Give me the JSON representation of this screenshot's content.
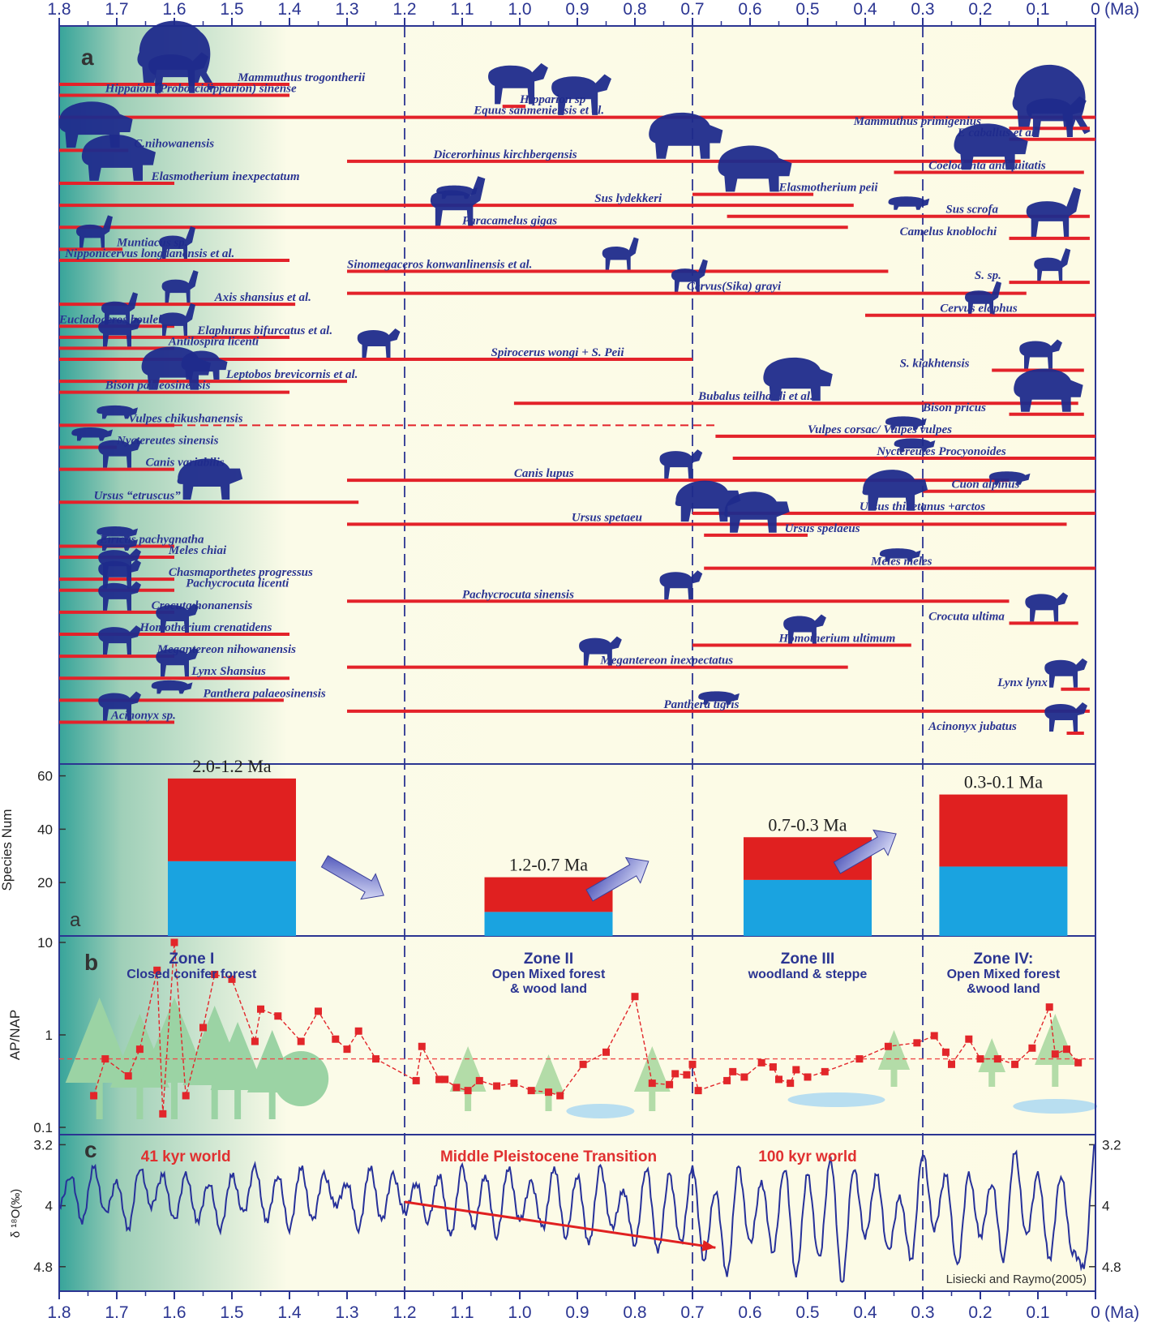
{
  "axis": {
    "ticks": [
      1.8,
      1.7,
      1.6,
      1.5,
      1.4,
      1.3,
      1.2,
      1.1,
      1.0,
      0.9,
      0.8,
      0.7,
      0.6,
      0.5,
      0.4,
      0.3,
      0.2,
      0.1,
      0
    ],
    "tick_labels": [
      "1.8",
      "1.7",
      "1.6",
      "1.5",
      "1.4",
      "1.3",
      "1.2",
      "1.1",
      "1.0",
      "0.9",
      "0.8",
      "0.7",
      "0.6",
      "0.5",
      "0.4",
      "0.3",
      "0.2",
      "0.1",
      "0"
    ],
    "unit": "(Ma)",
    "boundaries": [
      1.2,
      0.7,
      0.3
    ]
  },
  "panel_a": {
    "label": "a",
    "species": [
      {
        "name": "Mammuthus trogontherii",
        "start": 1.8,
        "end": 1.4,
        "labelAt": 1.49,
        "icon": "mammoth-icon"
      },
      {
        "name": "Hippaion (Proboscidipparion) sinense",
        "start": 1.8,
        "end": 1.4,
        "labelAt": 1.72,
        "icon": "horse-icon"
      },
      {
        "name": "Hipparion sp",
        "start": 1.03,
        "end": 0.99,
        "labelAt": 1.0,
        "icon": "horse-icon"
      },
      {
        "name": "Equus sanmeniensis et al.",
        "start": 1.8,
        "end": 0,
        "labelAt": 1.08,
        "icon": "horse-icon"
      },
      {
        "name": "Mammuthus primigenius",
        "start": 0.15,
        "end": 0.01,
        "labelAt": 0.42,
        "icon": "mammoth-icon"
      },
      {
        "name": "E caballus et al.",
        "start": 0.15,
        "end": 0,
        "labelAt": 0.24,
        "icon": "horse-icon"
      },
      {
        "name": "C.nihowanensis",
        "start": 1.8,
        "end": 1.68,
        "labelAt": 1.67,
        "icon": "rhino-icon"
      },
      {
        "name": "Dicerorhinus kirchbergensis",
        "start": 1.3,
        "end": 0.13,
        "labelAt": 1.15,
        "icon": "rhino-icon"
      },
      {
        "name": "Coelodonta antiquitatis",
        "start": 0.35,
        "end": 0.02,
        "labelAt": 0.29,
        "icon": "rhino-icon"
      },
      {
        "name": "Elasmotherium inexpectatum",
        "start": 1.8,
        "end": 1.6,
        "labelAt": 1.64,
        "icon": "rhino-icon"
      },
      {
        "name": "Elasmotherium peii",
        "start": 0.7,
        "end": 0.49,
        "labelAt": 0.55,
        "icon": "rhino-icon"
      },
      {
        "name": "Sus lydekkeri",
        "start": 1.8,
        "end": 0.42,
        "labelAt": 0.87,
        "icon": "boar-icon"
      },
      {
        "name": "Sus scrofa",
        "start": 0.64,
        "end": 0.01,
        "labelAt": 0.26,
        "icon": "boar-icon"
      },
      {
        "name": "Paracamelus gigas",
        "start": 1.8,
        "end": 0.43,
        "labelAt": 1.1,
        "icon": "camel-icon"
      },
      {
        "name": "Camelus knoblochi",
        "start": 0.15,
        "end": 0.01,
        "labelAt": 0.34,
        "icon": "camel-icon"
      },
      {
        "name": "Muntiacus sp.",
        "start": 1.8,
        "end": 1.69,
        "labelAt": 1.7,
        "icon": "deer-icon"
      },
      {
        "name": "Nipponicervus longdanensis et al.",
        "start": 1.8,
        "end": 1.4,
        "labelAt": 1.79,
        "icon": "deer-icon"
      },
      {
        "name": "Sinomegaceros konwanlinensis et al.",
        "start": 1.3,
        "end": 0.36,
        "labelAt": 1.3,
        "icon": "deer-icon"
      },
      {
        "name": "S. sp.",
        "start": 0.15,
        "end": 0.01,
        "labelAt": 0.21,
        "icon": "deer-icon"
      },
      {
        "name": "Cervus(Sika) grayi",
        "start": 1.3,
        "end": 0.12,
        "labelAt": 0.71,
        "icon": "deer-icon"
      },
      {
        "name": "Axis shansius et al.",
        "start": 1.8,
        "end": 1.39,
        "labelAt": 1.53,
        "icon": "deer-icon"
      },
      {
        "name": "Cervus elaphus",
        "start": 0.4,
        "end": 0,
        "labelAt": 0.27,
        "icon": "deer-icon"
      },
      {
        "name": "Eucladoceros boulei",
        "start": 1.8,
        "end": 1.6,
        "labelAt": 1.8,
        "icon": "deer-icon"
      },
      {
        "name": "Elaphurus bifurcatus et al.",
        "start": 1.8,
        "end": 1.4,
        "labelAt": 1.56,
        "icon": "deer-icon"
      },
      {
        "name": "Antilospira licenti",
        "start": 1.8,
        "end": 1.6,
        "labelAt": 1.61,
        "icon": "antelope-icon"
      },
      {
        "name": "Spirocerus wongi + S. Peii",
        "start": 1.8,
        "end": 0.7,
        "labelAt": 1.05,
        "icon": "antelope-icon"
      },
      {
        "name": "S. kiakhtensis",
        "start": 0.18,
        "end": 0.02,
        "labelAt": 0.34,
        "icon": "antelope-icon"
      },
      {
        "name": "Leptobos brevicornis et al.",
        "start": 1.8,
        "end": 1.3,
        "labelAt": 1.51,
        "icon": "bovid-icon"
      },
      {
        "name": "Bison palaeosinensis",
        "start": 1.8,
        "end": 1.4,
        "labelAt": 1.72,
        "icon": "bison-icon"
      },
      {
        "name": "Bubalus teilhardi et al.",
        "start": 1.01,
        "end": 0.03,
        "labelAt": 0.69,
        "icon": "buffalo-icon"
      },
      {
        "name": "Bison pricus",
        "start": 0.15,
        "end": 0.02,
        "labelAt": 0.3,
        "icon": "bison-icon"
      },
      {
        "name": "Vulpes chikushanensis",
        "start": 1.8,
        "end": 1.6,
        "labelAt": 1.68,
        "icon": "fox-icon"
      },
      {
        "name": "Vulpes corsac/ Vulpes vulpes",
        "start": 0.66,
        "end": 0,
        "labelAt": 0.5,
        "icon": "fox-icon"
      },
      {
        "name": "Nyctereutes sinensis",
        "start": 1.8,
        "end": 1.7,
        "labelAt": 1.7,
        "icon": "raccoon-dog-icon"
      },
      {
        "name": "Nyctereutes Procyonoides",
        "start": 0.63,
        "end": 0,
        "labelAt": 0.38,
        "icon": "raccoon-dog-icon"
      },
      {
        "name": "Canis variabilis",
        "start": 1.8,
        "end": 1.6,
        "labelAt": 1.65,
        "icon": "wolf-icon"
      },
      {
        "name": "Canis lupus",
        "start": 1.3,
        "end": 0.15,
        "labelAt": 1.01,
        "icon": "wolf-icon"
      },
      {
        "name": "Cuon alpinus",
        "start": 0.3,
        "end": 0,
        "labelAt": 0.25,
        "icon": "dhole-icon"
      },
      {
        "name": "Ursus “etruscus”",
        "start": 1.8,
        "end": 1.28,
        "labelAt": 1.74,
        "icon": "bear-icon"
      },
      {
        "name": "Ursus thibetanus +arctos",
        "start": 0.7,
        "end": 0,
        "labelAt": 0.41,
        "icon": "bear-icon"
      },
      {
        "name": "Ursus spetaeu",
        "start": 1.3,
        "end": 0.05,
        "labelAt": 0.91,
        "icon": "bear-icon"
      },
      {
        "name": "Ursus spelaeus",
        "start": 0.68,
        "end": 0.5,
        "labelAt": 0.54,
        "icon": "bear-icon"
      },
      {
        "name": "Eirictis pachygnatha",
        "start": 1.8,
        "end": 1.6,
        "labelAt": 1.73,
        "icon": "weasel-icon"
      },
      {
        "name": "Meles chiai",
        "start": 1.8,
        "end": 1.6,
        "labelAt": 1.61,
        "icon": "badger-icon"
      },
      {
        "name": "Meles meles",
        "start": 0.68,
        "end": 0,
        "labelAt": 0.39,
        "icon": "badger-icon"
      },
      {
        "name": "Chasmaporthetes progressus",
        "start": 1.8,
        "end": 1.6,
        "labelAt": 1.61,
        "icon": "hyena-icon"
      },
      {
        "name": "Pachycrocuta licenti",
        "start": 1.8,
        "end": 1.6,
        "labelAt": 1.58,
        "icon": "hyena-icon"
      },
      {
        "name": "Pachycrocuta sinensis",
        "start": 1.3,
        "end": 0.15,
        "labelAt": 1.1,
        "icon": "hyena-icon"
      },
      {
        "name": "Crocuta honanensis",
        "start": 1.8,
        "end": 1.6,
        "labelAt": 1.64,
        "icon": "hyena-icon"
      },
      {
        "name": "Crocuta ultima",
        "start": 0.15,
        "end": 0.03,
        "labelAt": 0.29,
        "icon": "hyena-icon"
      },
      {
        "name": "Homotherium crenatidens",
        "start": 1.8,
        "end": 1.4,
        "labelAt": 1.66,
        "icon": "sabertooth-icon"
      },
      {
        "name": "Homotherium ultimum",
        "start": 0.7,
        "end": 0.32,
        "labelAt": 0.55,
        "icon": "sabertooth-icon"
      },
      {
        "name": "Megantereon nihowanensis",
        "start": 1.8,
        "end": 1.6,
        "labelAt": 1.63,
        "icon": "sabertooth-icon"
      },
      {
        "name": "Megantereon inexpectatus",
        "start": 1.3,
        "end": 0.43,
        "labelAt": 0.86,
        "icon": "sabertooth-icon"
      },
      {
        "name": "Lynx Shansius",
        "start": 1.8,
        "end": 1.4,
        "labelAt": 1.57,
        "icon": "lynx-icon"
      },
      {
        "name": "Lynx lynx",
        "start": 0.06,
        "end": 0.01,
        "labelAt": 0.17,
        "icon": "lynx-icon"
      },
      {
        "name": "Panthera palaeosinensis",
        "start": 1.8,
        "end": 1.41,
        "labelAt": 1.55,
        "icon": "panther-icon"
      },
      {
        "name": "Panthera tigris",
        "start": 1.3,
        "end": 0.01,
        "labelAt": 0.75,
        "icon": "tiger-icon"
      },
      {
        "name": "Acinonyx sp.",
        "start": 1.8,
        "end": 1.6,
        "labelAt": 1.71,
        "icon": "cheetah-icon"
      },
      {
        "name": "Acinonyx jubatus",
        "start": 0.05,
        "end": 0.02,
        "labelAt": 0.29,
        "icon": "cheetah-icon"
      }
    ]
  },
  "chart_data": [
    {
      "type": "bar",
      "panel": "a",
      "ylabel": "Species Num",
      "ylim": [
        0,
        62
      ],
      "yticks": [
        20,
        40,
        60
      ],
      "categories": [
        "2.0-1.2 Ma",
        "1.2-0.7 Ma",
        "0.7-0.3 Ma",
        "0.3-0.1 Ma"
      ],
      "series": [
        {
          "values": [
            28,
            9,
            21,
            26
          ],
          "color": "#1aa3e0"
        },
        {
          "values": [
            31,
            13,
            16,
            27
          ],
          "color": "#e02020"
        }
      ],
      "arrows": [
        "down",
        "up",
        "up"
      ]
    },
    {
      "type": "scatter",
      "panel": "b",
      "ylabel": "AP/NAP",
      "yscale": "log",
      "ylim": [
        0.1,
        10
      ],
      "yticks": [
        0.1,
        1,
        10
      ],
      "mean_line": 0.55,
      "x": [
        1.74,
        1.72,
        1.68,
        1.66,
        1.63,
        1.62,
        1.6,
        1.58,
        1.55,
        1.53,
        1.5,
        1.46,
        1.45,
        1.42,
        1.38,
        1.35,
        1.32,
        1.3,
        1.28,
        1.25,
        1.18,
        1.17,
        1.14,
        1.13,
        1.11,
        1.09,
        1.07,
        1.04,
        1.01,
        0.98,
        0.95,
        0.93,
        0.89,
        0.85,
        0.8,
        0.77,
        0.74,
        0.73,
        0.71,
        0.7,
        0.69,
        0.64,
        0.63,
        0.61,
        0.58,
        0.56,
        0.55,
        0.53,
        0.52,
        0.5,
        0.47,
        0.41,
        0.36,
        0.31,
        0.28,
        0.26,
        0.25,
        0.22,
        0.2,
        0.17,
        0.14,
        0.11,
        0.08,
        0.07,
        0.05,
        0.03
      ],
      "y": [
        0.22,
        0.55,
        0.36,
        0.7,
        5.0,
        0.14,
        10.0,
        0.22,
        1.2,
        4.5,
        4.0,
        0.85,
        1.9,
        1.6,
        0.85,
        1.8,
        0.9,
        0.7,
        1.1,
        0.55,
        0.32,
        0.75,
        0.33,
        0.33,
        0.27,
        0.25,
        0.32,
        0.28,
        0.3,
        0.25,
        0.24,
        0.22,
        0.48,
        0.65,
        2.6,
        0.3,
        0.29,
        0.38,
        0.37,
        0.48,
        0.25,
        0.32,
        0.4,
        0.35,
        0.5,
        0.45,
        0.33,
        0.3,
        0.42,
        0.35,
        0.4,
        0.55,
        0.75,
        0.82,
        0.98,
        0.65,
        0.48,
        0.9,
        0.55,
        0.55,
        0.48,
        0.72,
        2.0,
        0.62,
        0.7,
        0.5
      ],
      "zones": [
        {
          "title": "Zone I",
          "desc1": "Closed conifer forest",
          "desc2": ""
        },
        {
          "title": "Zone II",
          "desc1": "Open Mixed forest",
          "desc2": "& wood land"
        },
        {
          "title": "Zone  III",
          "desc1": "woodland & steppe",
          "desc2": ""
        },
        {
          "title": "Zone IV:",
          "desc1": "Open Mixed forest",
          "desc2": "&wood land"
        }
      ]
    },
    {
      "type": "line",
      "panel": "c",
      "ylabel": "δ ¹⁸O(‰)",
      "yreversed": true,
      "ylim": [
        3.1,
        5.1
      ],
      "yticks": [
        3.2,
        4,
        4.8
      ],
      "ytick_labels": [
        "3.2",
        "4",
        "4.8"
      ],
      "x": [
        1.8,
        1.78,
        1.76,
        1.74,
        1.72,
        1.7,
        1.68,
        1.66,
        1.64,
        1.62,
        1.6,
        1.58,
        1.56,
        1.54,
        1.52,
        1.5,
        1.48,
        1.46,
        1.44,
        1.42,
        1.4,
        1.38,
        1.36,
        1.34,
        1.32,
        1.3,
        1.28,
        1.26,
        1.24,
        1.22,
        1.2,
        1.18,
        1.16,
        1.14,
        1.12,
        1.1,
        1.08,
        1.06,
        1.04,
        1.02,
        1.0,
        0.98,
        0.96,
        0.94,
        0.92,
        0.9,
        0.88,
        0.86,
        0.84,
        0.82,
        0.8,
        0.78,
        0.76,
        0.74,
        0.72,
        0.7,
        0.68,
        0.66,
        0.64,
        0.62,
        0.6,
        0.58,
        0.56,
        0.54,
        0.52,
        0.5,
        0.48,
        0.46,
        0.44,
        0.42,
        0.4,
        0.38,
        0.36,
        0.34,
        0.32,
        0.3,
        0.28,
        0.26,
        0.24,
        0.22,
        0.2,
        0.18,
        0.16,
        0.14,
        0.12,
        0.1,
        0.08,
        0.06,
        0.04,
        0.02,
        0.0
      ],
      "y": [
        4.0,
        3.6,
        4.2,
        3.5,
        4.1,
        3.7,
        4.3,
        3.5,
        4.0,
        3.6,
        4.2,
        3.6,
        4.2,
        3.7,
        4.3,
        3.6,
        4.1,
        3.5,
        4.2,
        3.6,
        4.3,
        3.5,
        4.2,
        3.6,
        4.0,
        3.7,
        4.3,
        3.5,
        4.2,
        3.6,
        4.1,
        3.7,
        4.2,
        3.6,
        4.4,
        3.5,
        4.3,
        3.6,
        4.4,
        3.5,
        4.2,
        3.7,
        4.3,
        3.5,
        4.4,
        3.6,
        4.5,
        3.5,
        4.3,
        3.8,
        4.5,
        3.5,
        4.6,
        3.6,
        4.5,
        3.5,
        4.7,
        3.8,
        4.9,
        3.5,
        4.5,
        3.7,
        4.6,
        3.5,
        4.9,
        3.6,
        4.7,
        3.4,
        5.0,
        3.5,
        4.4,
        3.6,
        4.6,
        3.9,
        4.7,
        3.3,
        4.3,
        3.6,
        4.8,
        3.6,
        4.4,
        3.7,
        4.7,
        3.3,
        4.4,
        3.6,
        4.7,
        3.6,
        4.6,
        4.8,
        3.2
      ],
      "annotations": [
        "41 kyr world",
        "Middle Pleistocene Transition",
        "100 kyr world"
      ],
      "trend_arrow": {
        "from": [
          1.2,
          3.95
        ],
        "to": [
          0.66,
          4.55
        ]
      },
      "source": "Lisiecki and Raymo(2005)"
    }
  ],
  "panel_labels": {
    "a": "a",
    "b": "b",
    "c": "c"
  },
  "colors": {
    "frame": "#2b3592",
    "range": "#e3222a",
    "silhouette": "#1f2b8c",
    "note": "#e03030",
    "mean": "#ef4b4b"
  }
}
